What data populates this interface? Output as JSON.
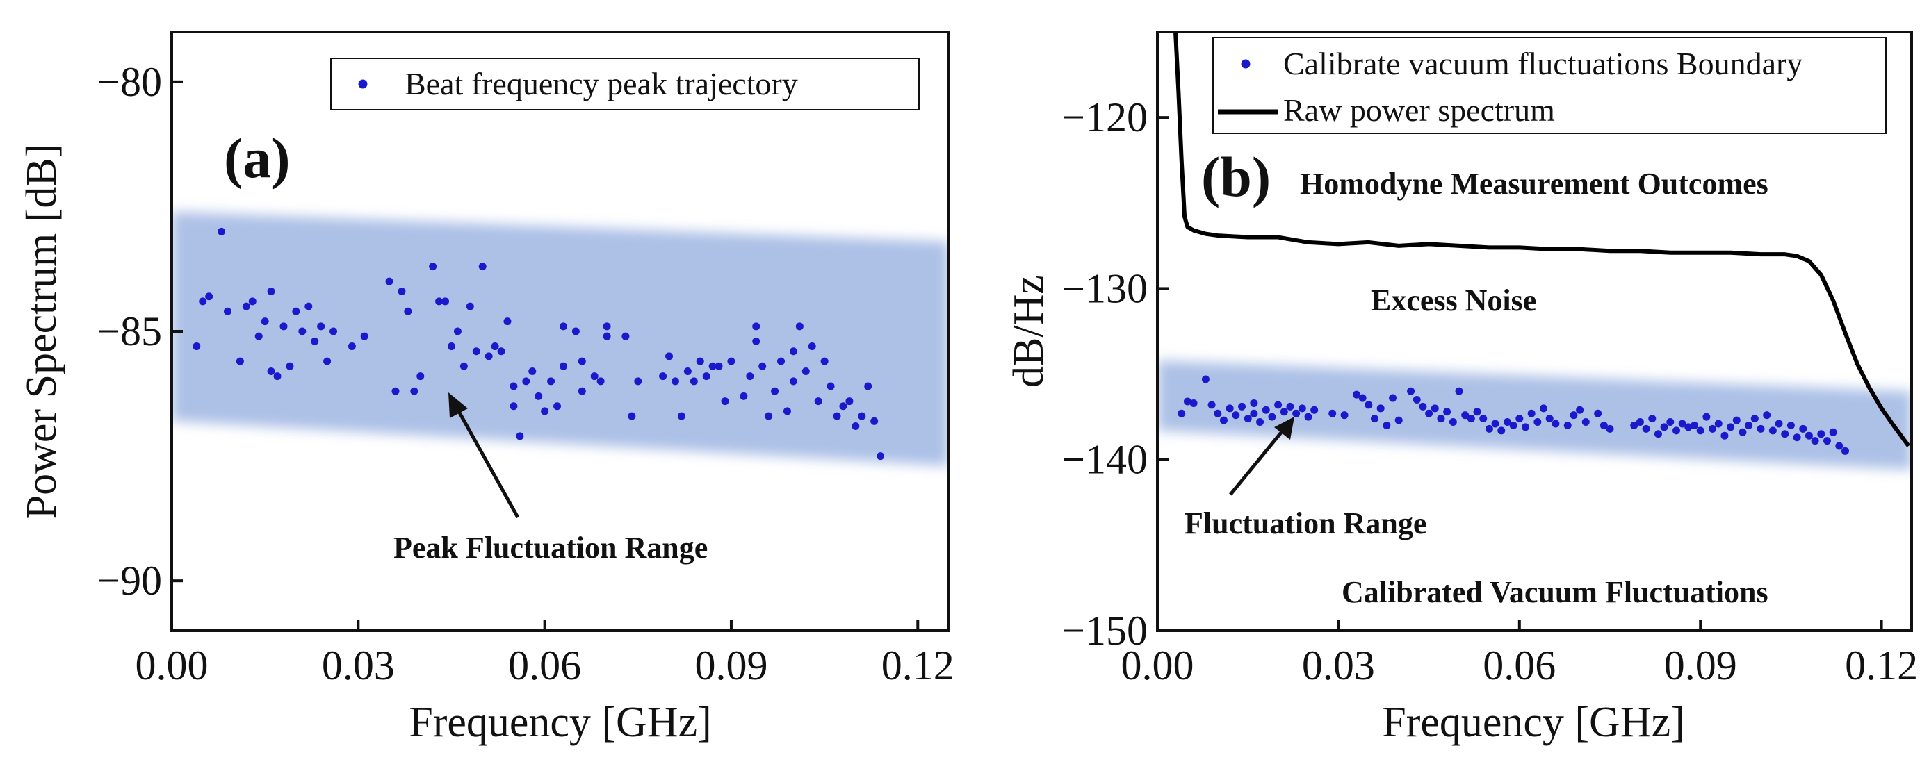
{
  "chart_data": [
    {
      "type": "scatter",
      "panel_label": "(a)",
      "xlabel": "Frequency [GHz]",
      "ylabel": "Power Spectrum [dB]",
      "xlim": [
        0,
        0.125
      ],
      "ylim": [
        -91,
        -79
      ],
      "xticks": [
        "0.00",
        "0.03",
        "0.06",
        "0.09",
        "0.12"
      ],
      "yticks": [
        "−80",
        "−85",
        "−90"
      ],
      "legend": {
        "placement": "top-right",
        "entries": [
          "Beat frequency peak trajectory"
        ]
      },
      "annotation": "Peak Fluctuation Range",
      "band": {
        "label": "Peak Fluctuation Range",
        "upper": [
          -82.6,
          -83.2
        ],
        "lower": [
          -86.8,
          -87.7
        ],
        "color": "#9fb6e2"
      },
      "series": [
        {
          "name": "Beat frequency peak trajectory",
          "color": "#1a1acc",
          "points": [
            [
              0.004,
              -85.3
            ],
            [
              0.005,
              -84.4
            ],
            [
              0.006,
              -84.3
            ],
            [
              0.008,
              -83.0
            ],
            [
              0.009,
              -84.6
            ],
            [
              0.011,
              -85.6
            ],
            [
              0.012,
              -84.5
            ],
            [
              0.013,
              -84.4
            ],
            [
              0.014,
              -85.1
            ],
            [
              0.015,
              -84.8
            ],
            [
              0.016,
              -85.8
            ],
            [
              0.016,
              -84.2
            ],
            [
              0.017,
              -85.9
            ],
            [
              0.018,
              -84.9
            ],
            [
              0.019,
              -85.7
            ],
            [
              0.02,
              -84.6
            ],
            [
              0.021,
              -85.0
            ],
            [
              0.022,
              -84.5
            ],
            [
              0.023,
              -85.2
            ],
            [
              0.024,
              -84.9
            ],
            [
              0.025,
              -85.6
            ],
            [
              0.026,
              -85.0
            ],
            [
              0.029,
              -85.3
            ],
            [
              0.031,
              -85.1
            ],
            [
              0.035,
              -84.0
            ],
            [
              0.036,
              -86.2
            ],
            [
              0.037,
              -84.2
            ],
            [
              0.038,
              -84.6
            ],
            [
              0.039,
              -86.2
            ],
            [
              0.04,
              -85.9
            ],
            [
              0.042,
              -83.7
            ],
            [
              0.043,
              -84.4
            ],
            [
              0.044,
              -84.4
            ],
            [
              0.045,
              -85.3
            ],
            [
              0.046,
              -85.0
            ],
            [
              0.047,
              -85.7
            ],
            [
              0.048,
              -84.5
            ],
            [
              0.049,
              -85.4
            ],
            [
              0.05,
              -83.7
            ],
            [
              0.051,
              -85.5
            ],
            [
              0.052,
              -85.3
            ],
            [
              0.053,
              -85.4
            ],
            [
              0.054,
              -84.8
            ],
            [
              0.055,
              -86.5
            ],
            [
              0.055,
              -86.1
            ],
            [
              0.056,
              -87.1
            ],
            [
              0.057,
              -86.0
            ],
            [
              0.058,
              -85.8
            ],
            [
              0.059,
              -86.3
            ],
            [
              0.06,
              -86.6
            ],
            [
              0.061,
              -86.0
            ],
            [
              0.062,
              -86.5
            ],
            [
              0.063,
              -85.7
            ],
            [
              0.063,
              -84.9
            ],
            [
              0.065,
              -85.0
            ],
            [
              0.066,
              -86.2
            ],
            [
              0.066,
              -85.6
            ],
            [
              0.068,
              -85.9
            ],
            [
              0.069,
              -86.0
            ],
            [
              0.07,
              -85.1
            ],
            [
              0.07,
              -84.9
            ],
            [
              0.073,
              -85.1
            ],
            [
              0.074,
              -86.7
            ],
            [
              0.075,
              -86.0
            ],
            [
              0.079,
              -85.9
            ],
            [
              0.08,
              -85.5
            ],
            [
              0.081,
              -86.0
            ],
            [
              0.082,
              -86.7
            ],
            [
              0.083,
              -85.8
            ],
            [
              0.084,
              -86.0
            ],
            [
              0.085,
              -85.6
            ],
            [
              0.086,
              -85.9
            ],
            [
              0.087,
              -85.7
            ],
            [
              0.088,
              -85.7
            ],
            [
              0.089,
              -86.4
            ],
            [
              0.09,
              -85.6
            ],
            [
              0.092,
              -86.3
            ],
            [
              0.093,
              -85.9
            ],
            [
              0.094,
              -84.9
            ],
            [
              0.094,
              -85.2
            ],
            [
              0.095,
              -85.7
            ],
            [
              0.096,
              -86.7
            ],
            [
              0.097,
              -86.2
            ],
            [
              0.098,
              -85.6
            ],
            [
              0.099,
              -86.6
            ],
            [
              0.1,
              -85.4
            ],
            [
              0.1,
              -86.0
            ],
            [
              0.101,
              -84.9
            ],
            [
              0.102,
              -85.8
            ],
            [
              0.103,
              -85.3
            ],
            [
              0.104,
              -86.4
            ],
            [
              0.105,
              -85.6
            ],
            [
              0.106,
              -86.1
            ],
            [
              0.107,
              -86.7
            ],
            [
              0.108,
              -86.5
            ],
            [
              0.109,
              -86.4
            ],
            [
              0.11,
              -86.9
            ],
            [
              0.111,
              -86.7
            ],
            [
              0.112,
              -86.1
            ],
            [
              0.113,
              -86.8
            ],
            [
              0.114,
              -87.5
            ]
          ]
        }
      ]
    },
    {
      "type": "scatter",
      "panel_label": "(b)",
      "xlabel": "Frequency [GHz]",
      "ylabel": "dB/Hz",
      "xlim": [
        0,
        0.125
      ],
      "ylim": [
        -150,
        -115
      ],
      "xticks": [
        "0.00",
        "0.03",
        "0.06",
        "0.09",
        "0.12"
      ],
      "yticks": [
        "−120",
        "−130",
        "−140",
        "−150"
      ],
      "legend": {
        "placement": "top-right",
        "entries": [
          "Calibrate vacuum fluctuations Boundary",
          "Raw power spectrum"
        ]
      },
      "annotations": [
        "Homodyne Measurement Outcomes",
        "Excess Noise",
        "Fluctuation Range",
        "Calibrated Vacuum Fluctuations"
      ],
      "band": {
        "label": "Fluctuation Range",
        "upper": [
          -134.2,
          -136.0
        ],
        "lower": [
          -138.3,
          -140.6
        ],
        "color": "#9fb6e2"
      },
      "series": [
        {
          "name": "Raw power spectrum",
          "type": "line",
          "color": "#000000",
          "points": [
            [
              0.003,
              -115
            ],
            [
              0.0035,
              -118.5
            ],
            [
              0.004,
              -122.5
            ],
            [
              0.0045,
              -125.8
            ],
            [
              0.005,
              -126.4
            ],
            [
              0.006,
              -126.6
            ],
            [
              0.008,
              -126.8
            ],
            [
              0.01,
              -126.9
            ],
            [
              0.015,
              -127.0
            ],
            [
              0.02,
              -127.0
            ],
            [
              0.025,
              -127.3
            ],
            [
              0.03,
              -127.4
            ],
            [
              0.035,
              -127.3
            ],
            [
              0.04,
              -127.5
            ],
            [
              0.045,
              -127.4
            ],
            [
              0.05,
              -127.5
            ],
            [
              0.055,
              -127.6
            ],
            [
              0.06,
              -127.6
            ],
            [
              0.065,
              -127.7
            ],
            [
              0.07,
              -127.7
            ],
            [
              0.075,
              -127.8
            ],
            [
              0.08,
              -127.8
            ],
            [
              0.085,
              -127.9
            ],
            [
              0.09,
              -127.9
            ],
            [
              0.095,
              -127.9
            ],
            [
              0.1,
              -128.0
            ],
            [
              0.104,
              -128.0
            ],
            [
              0.106,
              -128.1
            ],
            [
              0.108,
              -128.4
            ],
            [
              0.11,
              -129.2
            ],
            [
              0.112,
              -130.7
            ],
            [
              0.114,
              -132.6
            ],
            [
              0.116,
              -134.4
            ],
            [
              0.118,
              -135.8
            ],
            [
              0.12,
              -137.0
            ],
            [
              0.122,
              -138.0
            ],
            [
              0.1245,
              -139.2
            ]
          ]
        },
        {
          "name": "Calibrate vacuum fluctuations Boundary",
          "type": "scatter",
          "color": "#1a1acc",
          "points": [
            [
              0.004,
              -137.3
            ],
            [
              0.005,
              -136.6
            ],
            [
              0.006,
              -136.7
            ],
            [
              0.008,
              -135.3
            ],
            [
              0.009,
              -136.8
            ],
            [
              0.01,
              -137.3
            ],
            [
              0.011,
              -137.7
            ],
            [
              0.012,
              -137.0
            ],
            [
              0.013,
              -137.4
            ],
            [
              0.014,
              -136.9
            ],
            [
              0.015,
              -137.6
            ],
            [
              0.016,
              -137.3
            ],
            [
              0.016,
              -136.7
            ],
            [
              0.017,
              -137.8
            ],
            [
              0.018,
              -137.1
            ],
            [
              0.019,
              -137.5
            ],
            [
              0.02,
              -136.8
            ],
            [
              0.021,
              -137.2
            ],
            [
              0.022,
              -136.9
            ],
            [
              0.023,
              -137.3
            ],
            [
              0.024,
              -137.0
            ],
            [
              0.025,
              -137.5
            ],
            [
              0.026,
              -137.1
            ],
            [
              0.029,
              -137.3
            ],
            [
              0.031,
              -137.4
            ],
            [
              0.033,
              -136.2
            ],
            [
              0.034,
              -136.4
            ],
            [
              0.035,
              -136.8
            ],
            [
              0.036,
              -137.6
            ],
            [
              0.037,
              -137.0
            ],
            [
              0.038,
              -138.0
            ],
            [
              0.039,
              -136.4
            ],
            [
              0.04,
              -137.7
            ],
            [
              0.042,
              -136.0
            ],
            [
              0.043,
              -136.5
            ],
            [
              0.044,
              -136.9
            ],
            [
              0.045,
              -137.3
            ],
            [
              0.046,
              -137.0
            ],
            [
              0.047,
              -137.6
            ],
            [
              0.048,
              -137.2
            ],
            [
              0.049,
              -137.8
            ],
            [
              0.05,
              -136.0
            ],
            [
              0.051,
              -137.4
            ],
            [
              0.052,
              -137.6
            ],
            [
              0.053,
              -137.2
            ],
            [
              0.054,
              -137.6
            ],
            [
              0.055,
              -138.2
            ],
            [
              0.056,
              -137.9
            ],
            [
              0.057,
              -138.3
            ],
            [
              0.058,
              -137.8
            ],
            [
              0.059,
              -138.0
            ],
            [
              0.06,
              -137.6
            ],
            [
              0.061,
              -138.1
            ],
            [
              0.062,
              -137.3
            ],
            [
              0.063,
              -137.8
            ],
            [
              0.064,
              -137.0
            ],
            [
              0.065,
              -137.6
            ],
            [
              0.066,
              -137.9
            ],
            [
              0.068,
              -138.0
            ],
            [
              0.069,
              -137.4
            ],
            [
              0.07,
              -137.1
            ],
            [
              0.071,
              -137.8
            ],
            [
              0.073,
              -137.3
            ],
            [
              0.074,
              -138.0
            ],
            [
              0.075,
              -138.2
            ],
            [
              0.079,
              -138.0
            ],
            [
              0.08,
              -137.8
            ],
            [
              0.081,
              -138.2
            ],
            [
              0.082,
              -137.6
            ],
            [
              0.083,
              -138.5
            ],
            [
              0.084,
              -138.1
            ],
            [
              0.085,
              -137.8
            ],
            [
              0.086,
              -138.3
            ],
            [
              0.087,
              -137.9
            ],
            [
              0.088,
              -138.1
            ],
            [
              0.089,
              -138.0
            ],
            [
              0.09,
              -138.3
            ],
            [
              0.091,
              -137.5
            ],
            [
              0.092,
              -138.2
            ],
            [
              0.093,
              -137.9
            ],
            [
              0.094,
              -138.6
            ],
            [
              0.095,
              -138.1
            ],
            [
              0.096,
              -137.7
            ],
            [
              0.097,
              -138.4
            ],
            [
              0.098,
              -138.0
            ],
            [
              0.099,
              -137.6
            ],
            [
              0.1,
              -138.2
            ],
            [
              0.101,
              -137.4
            ],
            [
              0.102,
              -138.3
            ],
            [
              0.103,
              -137.9
            ],
            [
              0.104,
              -138.5
            ],
            [
              0.105,
              -138.0
            ],
            [
              0.106,
              -138.7
            ],
            [
              0.107,
              -138.2
            ],
            [
              0.108,
              -138.6
            ],
            [
              0.109,
              -138.9
            ],
            [
              0.11,
              -138.5
            ],
            [
              0.111,
              -138.9
            ],
            [
              0.112,
              -138.4
            ],
            [
              0.113,
              -139.2
            ],
            [
              0.114,
              -139.5
            ]
          ]
        }
      ]
    }
  ]
}
